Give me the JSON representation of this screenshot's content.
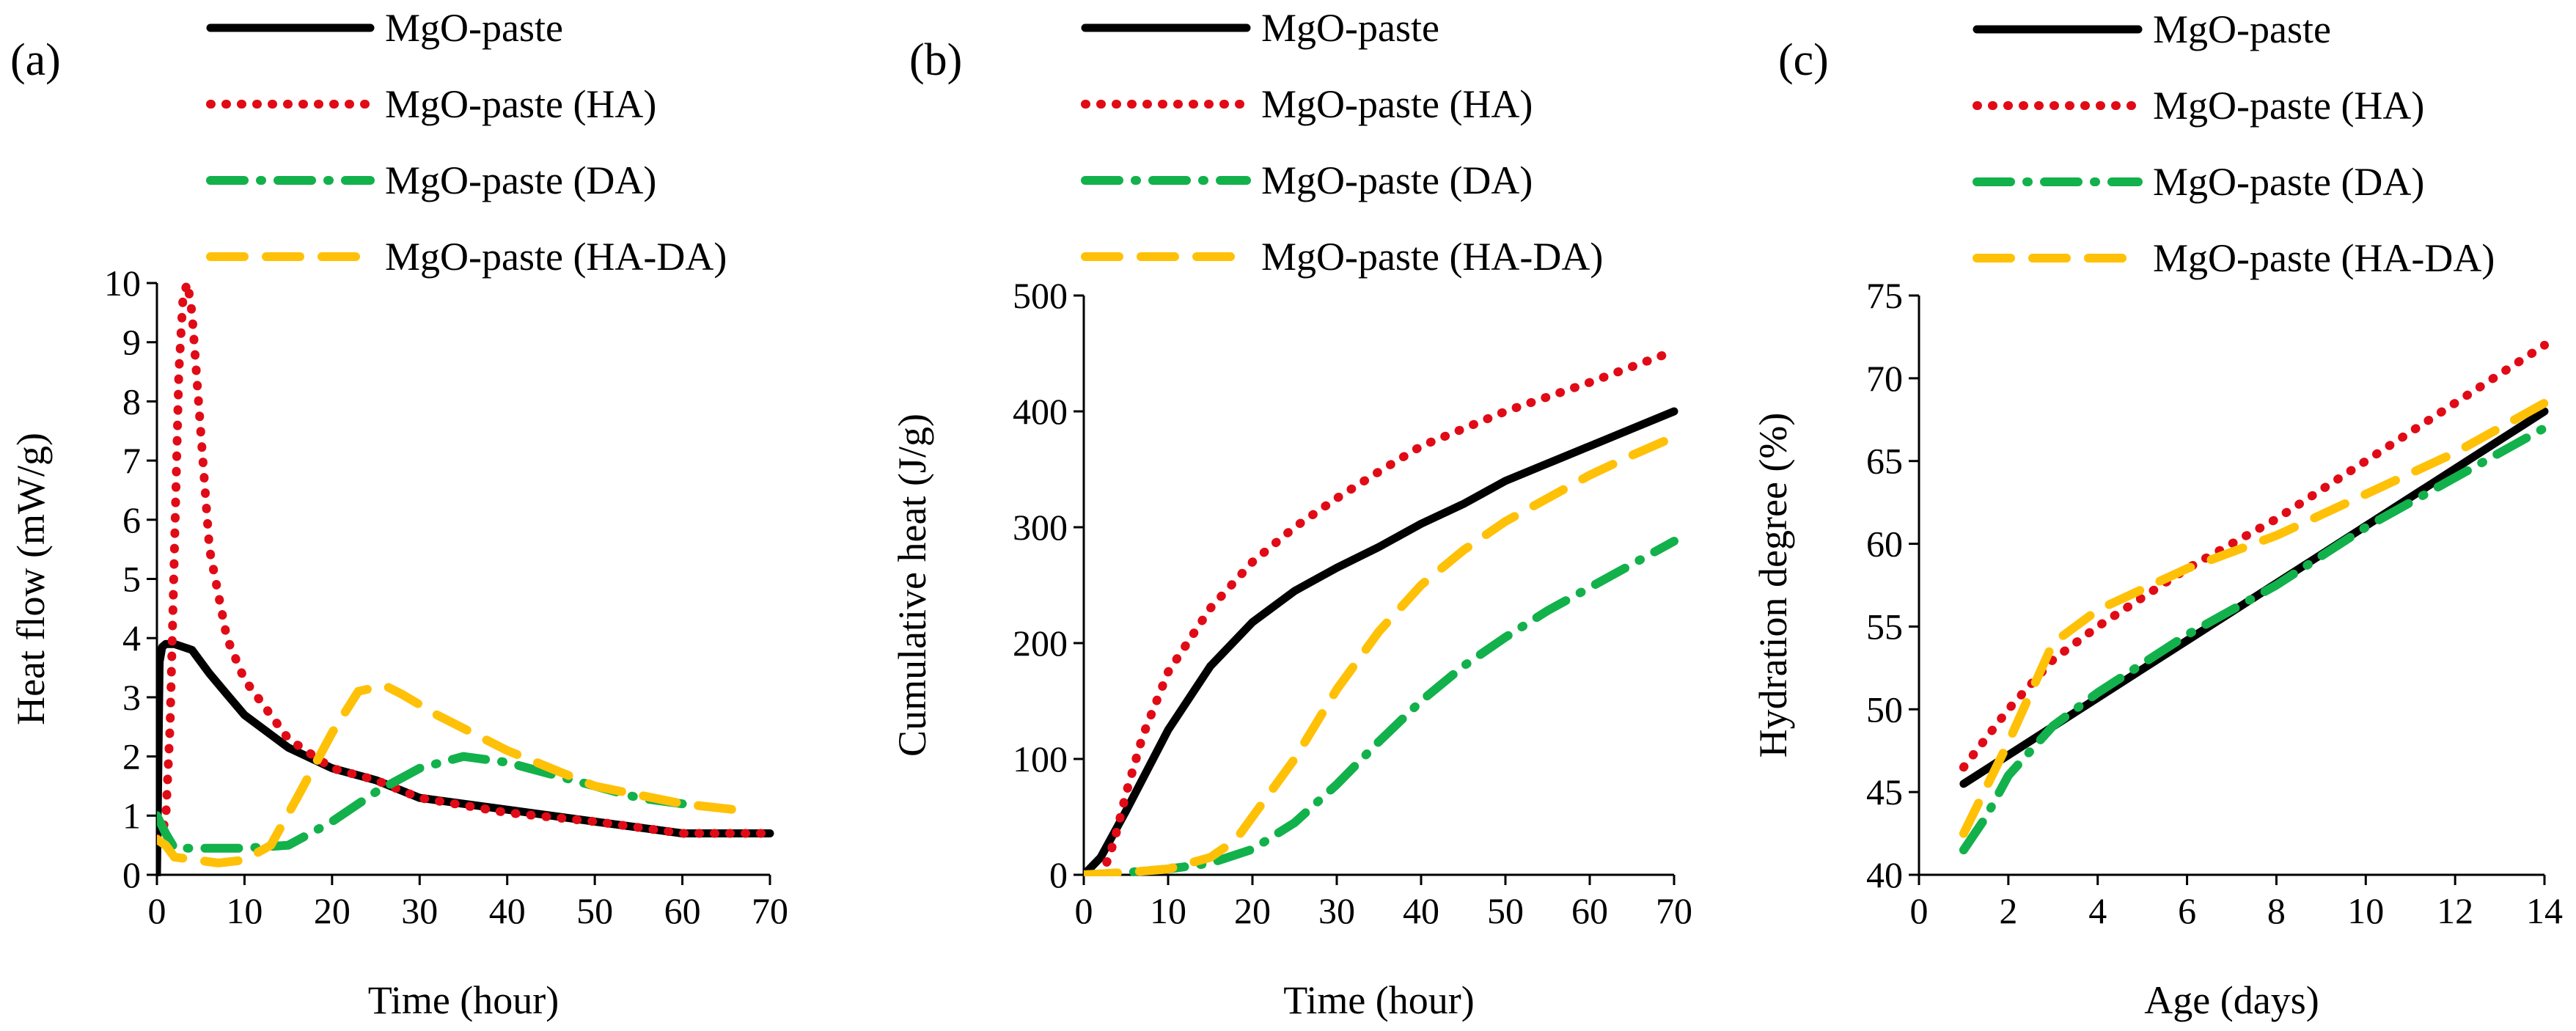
{
  "styles": {
    "MgO-paste": {
      "color": "#000000",
      "dash": "solid"
    },
    "MgO-paste (HA)": {
      "color": "#e00b16",
      "dash": "dot"
    },
    "MgO-paste (DA)": {
      "color": "#12b14b",
      "dash": "dashdot"
    },
    "MgO-paste (HA-DA)": {
      "color": "#ffc107",
      "dash": "dash"
    }
  },
  "chart_data": [
    {
      "panel": "(a)",
      "type": "line",
      "title": "",
      "xlabel": "Time (hour)",
      "ylabel": "Heat flow (mW/g)",
      "xlim": [
        0,
        70
      ],
      "ylim": [
        0,
        10
      ],
      "xticks": [
        0,
        10,
        20,
        30,
        40,
        50,
        60,
        70
      ],
      "yticks": [
        0,
        1,
        2,
        3,
        4,
        5,
        6,
        7,
        8,
        9,
        10
      ],
      "grid": false,
      "legend": "top",
      "series": [
        {
          "name": "MgO-paste",
          "x": [
            0,
            0.3,
            0.6,
            1,
            2,
            3,
            4,
            6,
            8,
            10,
            15,
            20,
            25,
            30,
            40,
            50,
            55,
            60,
            70
          ],
          "y": [
            0,
            3.6,
            3.85,
            3.9,
            3.9,
            3.85,
            3.8,
            3.4,
            3.05,
            2.7,
            2.15,
            1.8,
            1.6,
            1.3,
            1.1,
            0.9,
            0.8,
            0.7,
            0.7
          ]
        },
        {
          "name": "MgO-paste (HA)",
          "x": [
            0,
            1,
            1.5,
            2,
            2.5,
            3,
            3.5,
            4,
            5,
            6,
            8,
            10,
            15,
            20,
            25,
            30,
            40,
            50,
            60,
            70
          ],
          "y": [
            0.6,
            0.9,
            2.5,
            5.5,
            8.5,
            9.8,
            10.0,
            9.5,
            7.5,
            5.5,
            4.0,
            3.3,
            2.3,
            1.8,
            1.6,
            1.3,
            1.05,
            0.9,
            0.7,
            0.7
          ]
        },
        {
          "name": "MgO-paste (DA)",
          "x": [
            0,
            1,
            2,
            5,
            10,
            15,
            20,
            25,
            30,
            35,
            40,
            45,
            50,
            55,
            60
          ],
          "y": [
            1.0,
            0.7,
            0.45,
            0.45,
            0.45,
            0.5,
            0.9,
            1.4,
            1.8,
            2.0,
            1.9,
            1.7,
            1.5,
            1.3,
            1.2
          ]
        },
        {
          "name": "MgO-paste (HA-DA)",
          "x": [
            0,
            1,
            2,
            7,
            10,
            13,
            16,
            20,
            23,
            26,
            28,
            32,
            40,
            50,
            60,
            66
          ],
          "y": [
            0.6,
            0.5,
            0.3,
            0.2,
            0.25,
            0.5,
            1.3,
            2.4,
            3.1,
            3.2,
            3.05,
            2.7,
            2.1,
            1.5,
            1.2,
            1.1
          ]
        }
      ]
    },
    {
      "panel": "(b)",
      "type": "line",
      "title": "",
      "xlabel": "Time (hour)",
      "ylabel": "Cumulative heat (J/g)",
      "xlim": [
        0,
        70
      ],
      "ylim": [
        0,
        500
      ],
      "xticks": [
        0,
        10,
        20,
        30,
        40,
        50,
        60,
        70
      ],
      "yticks": [
        0,
        100,
        200,
        300,
        400,
        500
      ],
      "grid": false,
      "legend": "top",
      "series": [
        {
          "name": "MgO-paste",
          "x": [
            0,
            2,
            5,
            10,
            15,
            20,
            25,
            30,
            35,
            40,
            45,
            50,
            55,
            60,
            65,
            70
          ],
          "y": [
            0,
            15,
            55,
            125,
            180,
            218,
            245,
            265,
            283,
            303,
            320,
            340,
            355,
            370,
            385,
            400
          ]
        },
        {
          "name": "MgO-paste (HA)",
          "x": [
            0,
            2,
            3,
            4,
            5,
            7,
            10,
            15,
            20,
            25,
            30,
            35,
            40,
            50,
            60,
            70
          ],
          "y": [
            0,
            0,
            15,
            40,
            70,
            120,
            175,
            230,
            270,
            300,
            325,
            348,
            370,
            400,
            425,
            452
          ]
        },
        {
          "name": "MgO-paste (DA)",
          "x": [
            0,
            5,
            10,
            15,
            20,
            25,
            30,
            35,
            40,
            45,
            50,
            55,
            60,
            65,
            70
          ],
          "y": [
            0,
            2,
            5,
            10,
            22,
            45,
            78,
            115,
            150,
            180,
            205,
            228,
            248,
            268,
            288
          ]
        },
        {
          "name": "MgO-paste (HA-DA)",
          "x": [
            0,
            5,
            10,
            15,
            18,
            20,
            25,
            30,
            35,
            40,
            45,
            50,
            55,
            60,
            65,
            70
          ],
          "y": [
            0,
            2,
            5,
            15,
            30,
            50,
            100,
            160,
            210,
            250,
            280,
            305,
            325,
            345,
            362,
            378
          ]
        }
      ]
    },
    {
      "panel": "(c)",
      "type": "line",
      "title": "",
      "xlabel": "Age (days)",
      "ylabel": "Hydration degree (%)",
      "xlim": [
        0,
        14
      ],
      "ylim": [
        40,
        75
      ],
      "xticks": [
        0,
        2,
        4,
        6,
        8,
        10,
        12,
        14
      ],
      "yticks": [
        40,
        45,
        50,
        55,
        60,
        65,
        70,
        75
      ],
      "grid": false,
      "legend": "top",
      "series": [
        {
          "name": "MgO-paste",
          "x": [
            1,
            14
          ],
          "y": [
            45.5,
            68
          ]
        },
        {
          "name": "MgO-paste (HA)",
          "x": [
            1,
            2,
            3,
            4,
            6,
            8,
            10,
            12,
            14
          ],
          "y": [
            46.5,
            50,
            53,
            55,
            58.5,
            61.5,
            65,
            68.5,
            72
          ]
        },
        {
          "name": "MgO-paste (DA)",
          "x": [
            1,
            1.5,
            2,
            3,
            4,
            6,
            8,
            10,
            12,
            14
          ],
          "y": [
            41.5,
            43.5,
            46,
            49,
            51,
            54.5,
            57.5,
            61,
            64,
            67
          ]
        },
        {
          "name": "MgO-paste (HA-DA)",
          "x": [
            1,
            2,
            3,
            4,
            6,
            8,
            10,
            12,
            14
          ],
          "y": [
            42.5,
            48,
            54,
            56,
            58.5,
            60.5,
            63,
            65.5,
            68.5
          ]
        }
      ]
    }
  ]
}
